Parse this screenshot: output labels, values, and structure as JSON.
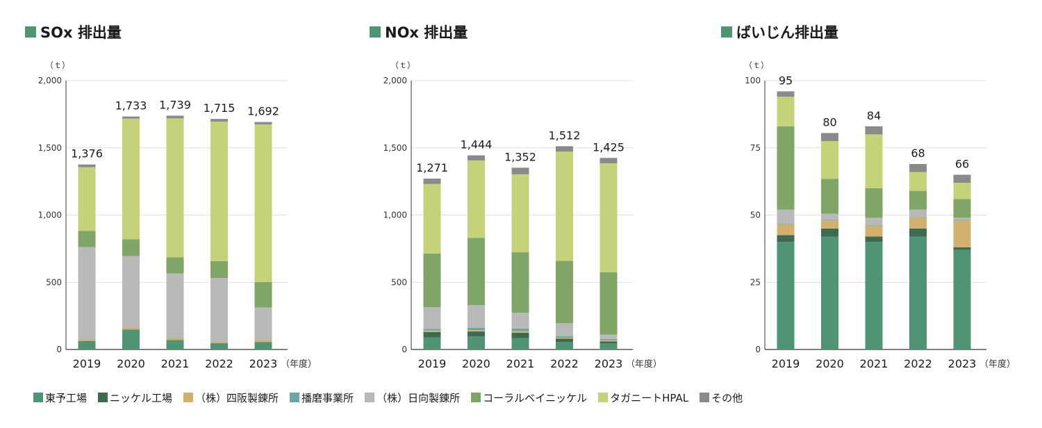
{
  "colors": {
    "toyo": "#4f9473",
    "nickel": "#3d6b50",
    "shisaka": "#d4b06f",
    "harima": "#6aa6a3",
    "hyuga": "#b9b9b9",
    "coral": "#80a667",
    "taganito": "#c5d27a",
    "other": "#8a8a8a"
  },
  "legend": [
    {
      "key": "toyo",
      "label": "東予工場"
    },
    {
      "key": "nickel",
      "label": "ニッケル工場"
    },
    {
      "key": "shisaka",
      "label": "（株）四阪製錬所"
    },
    {
      "key": "harima",
      "label": "播磨事業所"
    },
    {
      "key": "hyuga",
      "label": "（株）日向製錬所"
    },
    {
      "key": "coral",
      "label": "コーラルベイニッケル"
    },
    {
      "key": "taganito",
      "label": "タガニートHPAL"
    },
    {
      "key": "other",
      "label": "その他"
    }
  ],
  "chart_data": [
    {
      "type": "bar",
      "stacked": true,
      "title": "SOx 排出量",
      "unit": "（ｔ）",
      "x_suffix": "（年度）",
      "categories": [
        "2019",
        "2020",
        "2021",
        "2022",
        "2023"
      ],
      "ylim": [
        0,
        2000
      ],
      "yticks": [
        0,
        500,
        1000,
        1500,
        2000
      ],
      "ytick_labels": [
        "0",
        "500",
        "1,000",
        "1,500",
        "2,000"
      ],
      "totals": [
        "1,376",
        "1,733",
        "1,739",
        "1,715",
        "1,692"
      ],
      "total_values": [
        1376,
        1733,
        1739,
        1715,
        1692
      ],
      "series": [
        {
          "key": "toyo",
          "values": [
            58,
            145,
            68,
            45,
            52
          ]
        },
        {
          "key": "nickel",
          "values": [
            5,
            3,
            3,
            3,
            3
          ]
        },
        {
          "key": "shisaka",
          "values": [
            14,
            12,
            14,
            10,
            12
          ]
        },
        {
          "key": "harima",
          "values": [
            2,
            2,
            2,
            2,
            2
          ]
        },
        {
          "key": "hyuga",
          "values": [
            683,
            533,
            478,
            472,
            243
          ]
        },
        {
          "key": "coral",
          "values": [
            120,
            125,
            120,
            125,
            190
          ]
        },
        {
          "key": "taganito",
          "values": [
            474,
            897,
            1034,
            1038,
            1172
          ]
        },
        {
          "key": "other",
          "values": [
            20,
            16,
            20,
            20,
            18
          ]
        }
      ]
    },
    {
      "type": "bar",
      "stacked": true,
      "title": "NOx 排出量",
      "unit": "（ｔ）",
      "x_suffix": "（年度）",
      "categories": [
        "2019",
        "2020",
        "2021",
        "2022",
        "2023"
      ],
      "ylim": [
        0,
        2000
      ],
      "yticks": [
        0,
        500,
        1000,
        1500,
        2000
      ],
      "ytick_labels": [
        "0",
        "500",
        "1,000",
        "1,500",
        "2,000"
      ],
      "totals": [
        "1,271",
        "1,444",
        "1,352",
        "1,512",
        "1,425"
      ],
      "total_values": [
        1271,
        1444,
        1352,
        1512,
        1425
      ],
      "series": [
        {
          "key": "toyo",
          "values": [
            90,
            97,
            85,
            55,
            45
          ]
        },
        {
          "key": "nickel",
          "values": [
            40,
            37,
            40,
            25,
            15
          ]
        },
        {
          "key": "shisaka",
          "values": [
            12,
            10,
            12,
            8,
            8
          ]
        },
        {
          "key": "harima",
          "values": [
            12,
            18,
            18,
            10,
            10
          ]
        },
        {
          "key": "hyuga",
          "values": [
            160,
            168,
            118,
            97,
            32
          ]
        },
        {
          "key": "coral",
          "values": [
            400,
            500,
            450,
            465,
            465
          ]
        },
        {
          "key": "taganito",
          "values": [
            517,
            576,
            580,
            812,
            810
          ]
        },
        {
          "key": "other",
          "values": [
            40,
            38,
            49,
            40,
            40
          ]
        }
      ]
    },
    {
      "type": "bar",
      "stacked": true,
      "title": "ばいじん排出量",
      "unit": "（ｔ）",
      "x_suffix": "（年度）",
      "categories": [
        "2019",
        "2020",
        "2021",
        "2022",
        "2023"
      ],
      "ylim": [
        0,
        100
      ],
      "yticks": [
        0,
        25,
        50,
        75,
        100
      ],
      "ytick_labels": [
        "0",
        "25",
        "50",
        "75",
        "100"
      ],
      "totals": [
        "95",
        "80",
        "84",
        "68",
        "66"
      ],
      "total_values": [
        96,
        80.5,
        83,
        69,
        65
      ],
      "series": [
        {
          "key": "toyo",
          "values": [
            40,
            42,
            40,
            42,
            37
          ]
        },
        {
          "key": "nickel",
          "values": [
            2.5,
            3,
            2,
            3,
            1
          ]
        },
        {
          "key": "shisaka",
          "values": [
            4,
            3,
            4,
            4,
            10
          ]
        },
        {
          "key": "harima",
          "values": [
            0.2,
            0.2,
            0.2,
            0.2,
            0.2
          ]
        },
        {
          "key": "hyuga",
          "values": [
            5.3,
            2.3,
            2.8,
            2.8,
            0.8
          ]
        },
        {
          "key": "coral",
          "values": [
            31,
            13,
            11,
            7,
            7
          ]
        },
        {
          "key": "taganito",
          "values": [
            11,
            14,
            20,
            7,
            6
          ]
        },
        {
          "key": "other",
          "values": [
            2,
            3,
            3,
            3,
            3
          ]
        }
      ]
    }
  ]
}
